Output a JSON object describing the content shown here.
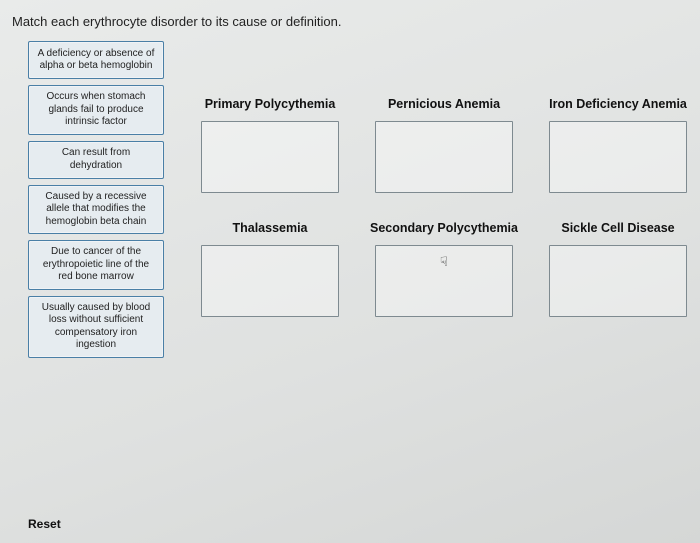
{
  "prompt": "Match each erythrocyte disorder to its cause or definition.",
  "drag_items": [
    {
      "text": "A deficiency or absence of alpha or beta hemoglobin"
    },
    {
      "text": "Occurs when stomach glands fail to produce intrinsic factor"
    },
    {
      "text": "Can result from dehydration"
    },
    {
      "text": "Caused by a recessive allele that modifies the hemoglobin beta chain"
    },
    {
      "text": "Due to cancer of the erythropoietic line of the red bone marrow"
    },
    {
      "text": "Usually caused by blood loss without sufficient compensatory iron ingestion"
    }
  ],
  "targets_row1": [
    {
      "label": "Primary Polycythemia"
    },
    {
      "label": "Pernicious Anemia"
    },
    {
      "label": "Iron Deficiency Anemia"
    }
  ],
  "targets_row2": [
    {
      "label": "Thalassemia"
    },
    {
      "label": "Secondary Polycythemia",
      "cursor": true
    },
    {
      "label": "Sickle Cell Disease"
    }
  ],
  "reset_label": "Reset",
  "colors": {
    "page_bg": "#dfe1e0",
    "card_border": "#4a7fa6",
    "card_bg": "#e6ecf0",
    "drop_border": "#7e8a90"
  }
}
